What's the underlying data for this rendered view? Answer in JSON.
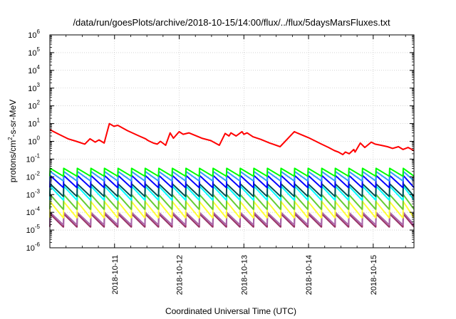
{
  "chart_data": {
    "type": "line",
    "title": "/data/run/goesPlots/archive/2018-10-15/14:00/flux/../flux/5daysMarsFluxes.txt",
    "xlabel": "Coordinated Universal Time (UTC)",
    "ylabel": "protons/cm2-s-sr-MeV",
    "ylabel_parts": {
      "pre": "protons/cm",
      "sup": "2",
      "post": "-s-sr-MeV"
    },
    "x_ticks": [
      "2018-10-11",
      "2018-10-12",
      "2018-10-13",
      "2018-10-14",
      "2018-10-15"
    ],
    "xlim": [
      0.0,
      5.63
    ],
    "x_units": "days since 2018-10-10 00:00 UTC",
    "y_scale": "log",
    "y_tick_base": "10",
    "y_tick_exponents": [
      "-6",
      "-5",
      "-4",
      "-3",
      "-2",
      "-1",
      "0",
      "1",
      "2",
      "3",
      "4",
      "5",
      "6"
    ],
    "ylim": [
      1e-06,
      1000000.0
    ],
    "grid": true,
    "series": [
      {
        "color": "#ff0000",
        "pattern": "flare",
        "x": [
          0.0,
          0.14,
          0.28,
          0.41,
          0.54,
          0.62,
          0.7,
          0.76,
          0.84,
          0.92,
          0.99,
          1.05,
          1.2,
          1.38,
          1.48,
          1.52,
          1.6,
          1.66,
          1.71,
          1.79,
          1.86,
          1.91,
          2.0,
          2.06,
          2.15,
          2.35,
          2.49,
          2.62,
          2.71,
          2.77,
          2.8,
          2.88,
          2.97,
          3.0,
          3.05,
          3.14,
          3.26,
          3.4,
          3.56,
          3.78,
          3.82,
          4.0,
          4.2,
          4.31,
          4.4,
          4.46,
          4.53,
          4.57,
          4.63,
          4.7,
          4.72,
          4.8,
          4.87,
          4.97,
          5.03,
          5.12,
          5.22,
          5.3,
          5.39,
          5.46,
          5.54,
          5.63
        ],
        "y": [
          4.5,
          2.5,
          1.4,
          1.0,
          0.7,
          1.4,
          0.9,
          1.2,
          0.8,
          10.0,
          7.0,
          8.0,
          4.0,
          2.0,
          1.4,
          1.1,
          0.8,
          0.7,
          1.0,
          0.6,
          3.0,
          1.5,
          3.5,
          2.5,
          3.0,
          1.5,
          1.1,
          0.6,
          2.8,
          2.0,
          3.0,
          2.0,
          3.5,
          2.5,
          3.0,
          1.8,
          1.3,
          0.8,
          0.5,
          3.5,
          3.0,
          1.6,
          0.7,
          0.45,
          0.3,
          0.25,
          0.18,
          0.25,
          0.2,
          0.35,
          0.25,
          0.8,
          0.45,
          0.9,
          0.7,
          0.6,
          0.5,
          0.4,
          0.5,
          0.35,
          0.45,
          0.3
        ]
      },
      {
        "color": "#00ff00",
        "pattern": "sawtooth",
        "period": 0.21,
        "peak": 0.03,
        "trough": 0.011
      },
      {
        "color": "#3399ff",
        "pattern": "sawtooth",
        "period": 0.21,
        "peak": 0.02,
        "trough": 0.006
      },
      {
        "color": "#0000ff",
        "pattern": "sawtooth",
        "period": 0.21,
        "peak": 0.012,
        "trough": 0.0025
      },
      {
        "color": "#005050",
        "pattern": "sawtooth",
        "period": 0.21,
        "peak": 0.004,
        "trough": 0.0008
      },
      {
        "color": "#00ffff",
        "pattern": "sawtooth",
        "period": 0.21,
        "peak": 0.003,
        "trough": 0.0005
      },
      {
        "color": "#66cc33",
        "pattern": "sawtooth",
        "period": 0.21,
        "peak": 0.001,
        "trough": 0.00015
      },
      {
        "color": "#ffff33",
        "pattern": "sawtooth",
        "period": 0.21,
        "peak": 0.0004,
        "trough": 5e-05
      },
      {
        "color": "#aa66aa",
        "pattern": "sawtooth",
        "period": 0.21,
        "peak": 0.0001,
        "trough": 2e-05
      },
      {
        "color": "#993366",
        "pattern": "sawtooth",
        "period": 0.21,
        "peak": 8e-05,
        "trough": 1.5e-05
      }
    ]
  }
}
